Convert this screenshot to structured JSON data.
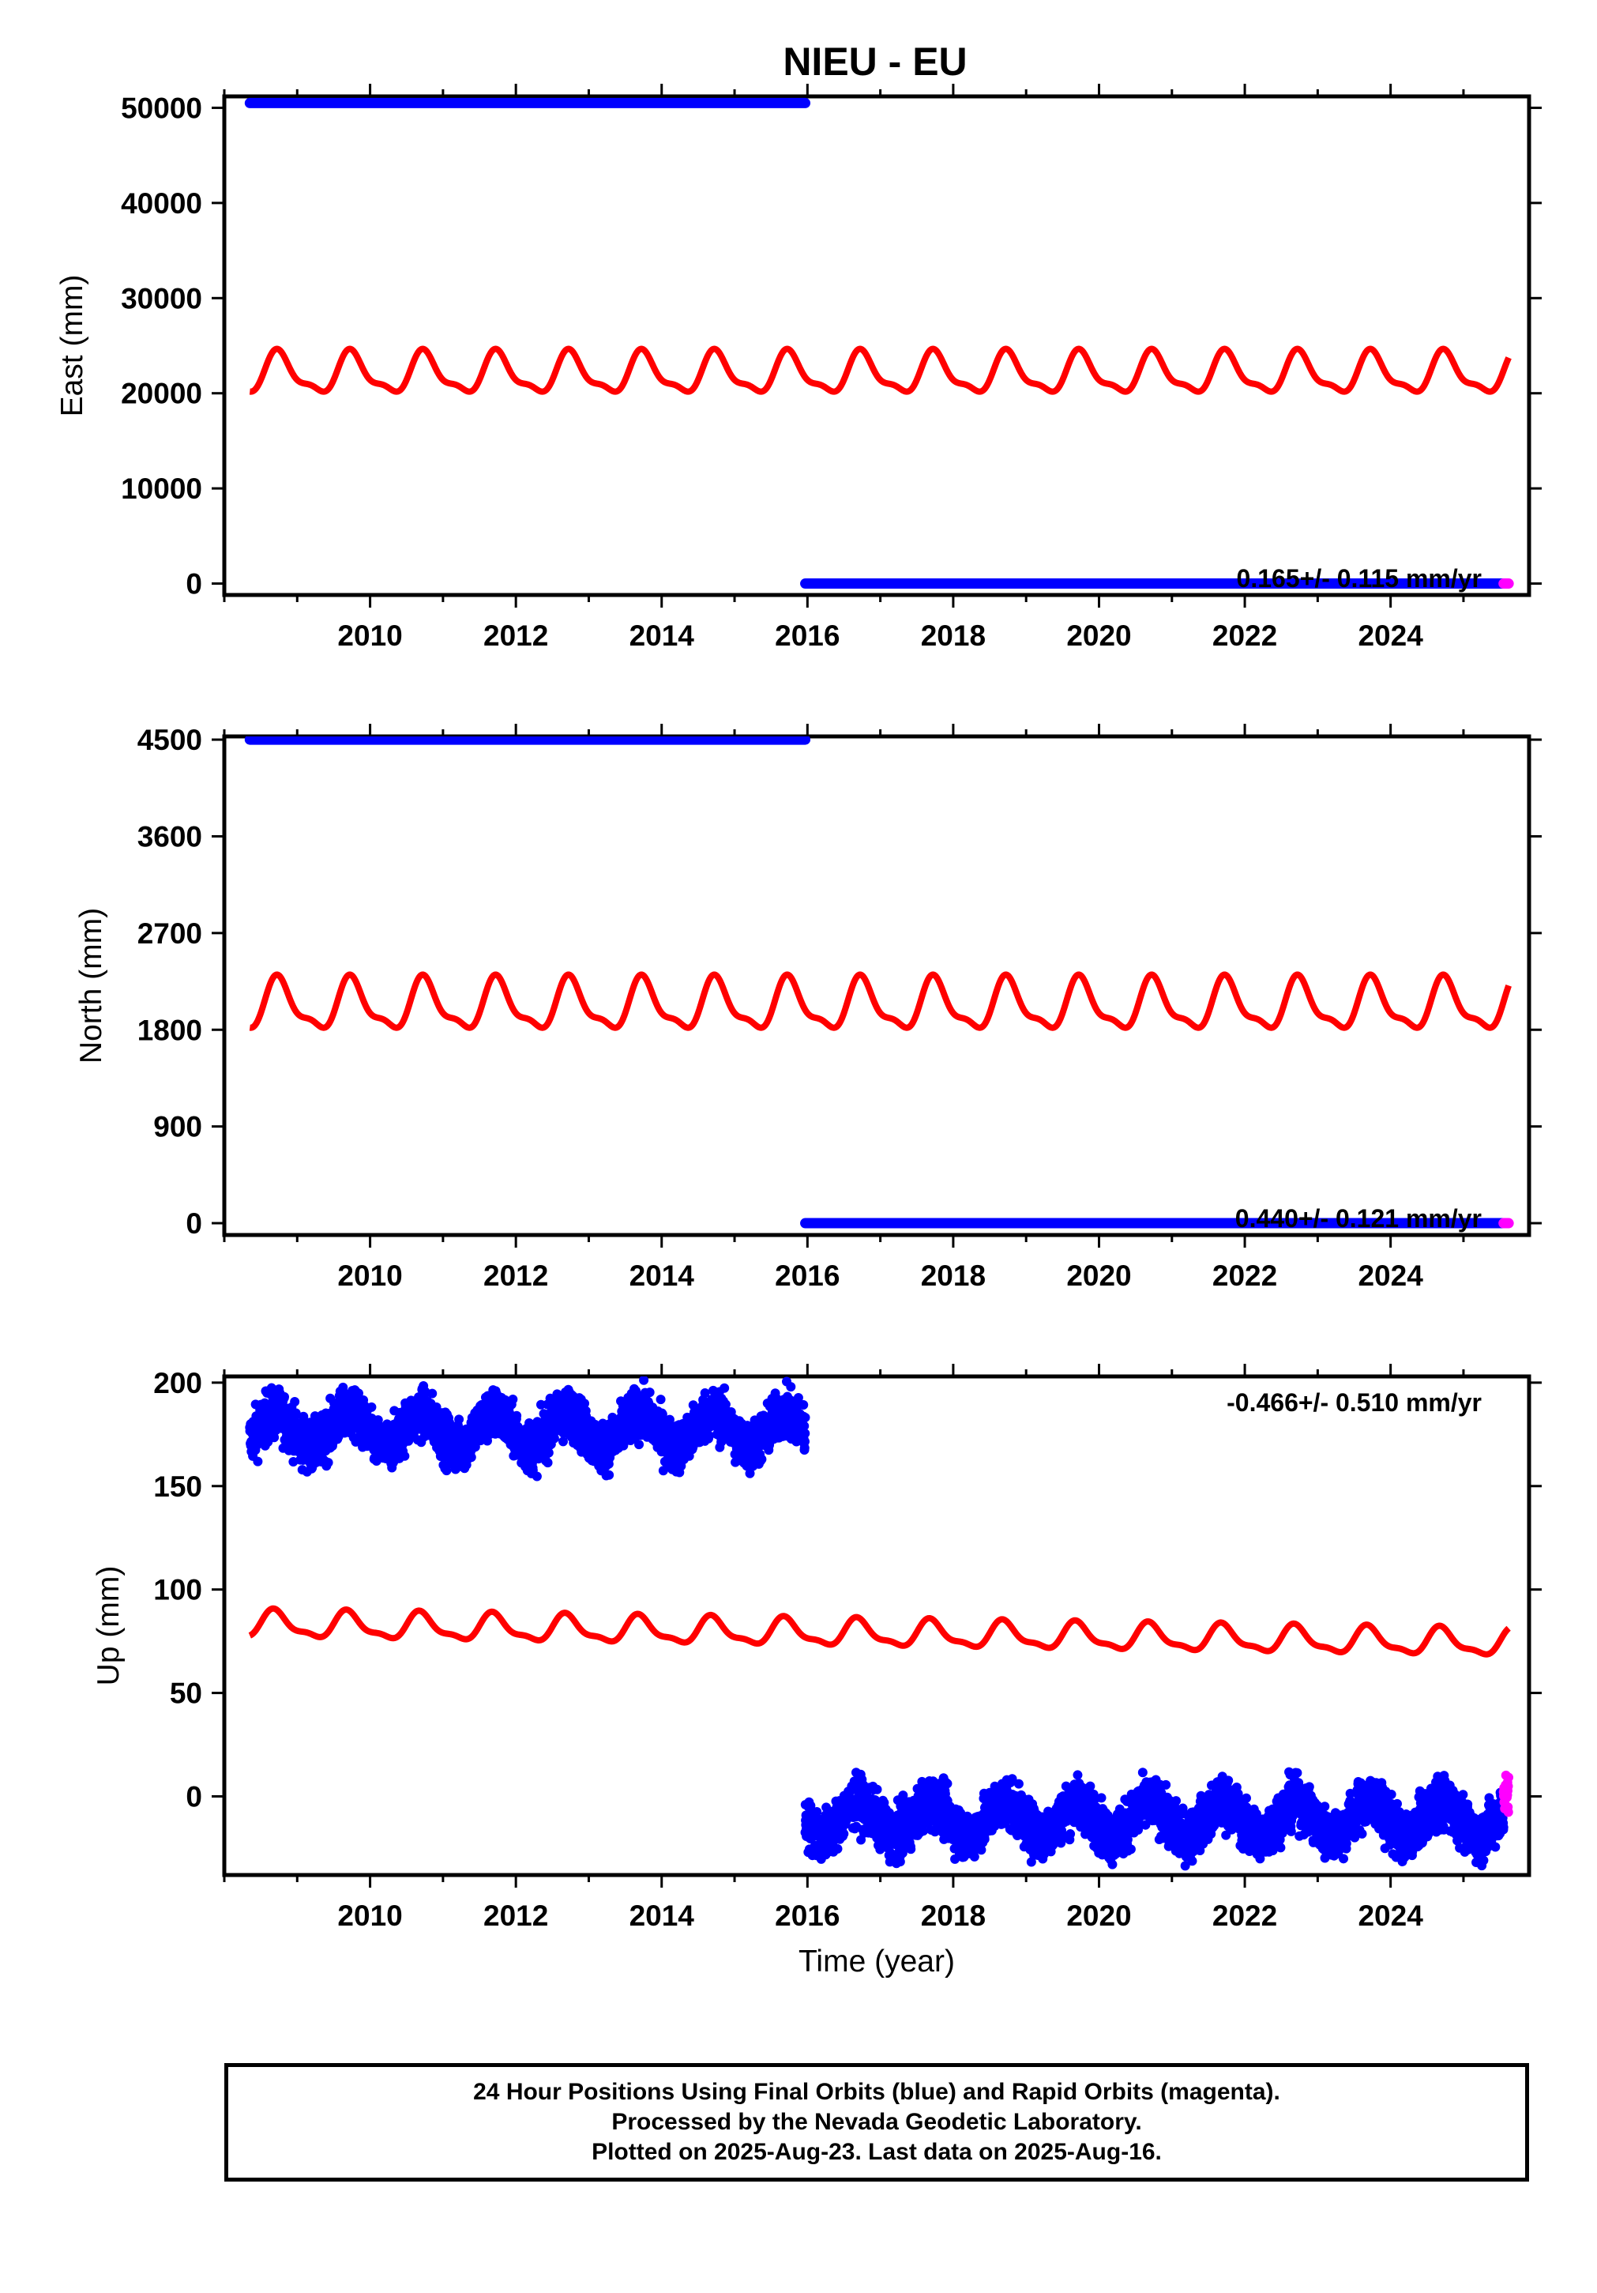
{
  "title": "NIEU - EU",
  "footer": {
    "line1": "24 Hour Positions Using Final Orbits (blue) and Rapid Orbits (magenta).",
    "line2": "Processed by the Nevada Geodetic Laboratory.",
    "line3": "Plotted on 2025-Aug-23. Last data on 2025-Aug-16."
  },
  "colors": {
    "final": "#0000ff",
    "rapid": "#ff00ff",
    "model": "#ff0000",
    "axis": "#000000"
  },
  "chart_data": [
    {
      "type": "scatter",
      "ylabel": "East (mm)",
      "xlim": [
        2008.0,
        2025.9
      ],
      "ylim": [
        -1200,
        51200
      ],
      "xticks": [
        2010,
        2012,
        2014,
        2016,
        2018,
        2020,
        2022,
        2024
      ],
      "yticks": [
        0,
        10000,
        20000,
        30000,
        40000,
        50000
      ],
      "rate_label": "0.165+/- 0.115 mm/yr",
      "rate_position": "bottom-right",
      "final_segments": [
        {
          "x_start": 2008.35,
          "x_end": 2015.97,
          "y": 50500
        },
        {
          "x_start": 2015.97,
          "x_end": 2025.55,
          "y": 0
        }
      ],
      "rapid_segment": {
        "x_start": 2025.55,
        "x_end": 2025.62,
        "y": 0
      },
      "model_curve": {
        "x_start": 2008.35,
        "x_end": 2025.62,
        "baseline_start": 20000,
        "baseline_end": 20000,
        "amplitude": 4000,
        "period_years": 1.0,
        "peak_phase": 0.75
      }
    },
    {
      "type": "scatter",
      "ylabel": "North (mm)",
      "xlim": [
        2008.0,
        2025.9
      ],
      "ylim": [
        -110,
        4530
      ],
      "xticks": [
        2010,
        2012,
        2014,
        2016,
        2018,
        2020,
        2022,
        2024
      ],
      "yticks": [
        0,
        900,
        1800,
        2700,
        3600,
        4500
      ],
      "rate_label": "0.440+/- 0.121 mm/yr",
      "rate_position": "bottom-right",
      "final_segments": [
        {
          "x_start": 2008.35,
          "x_end": 2015.97,
          "y": 4500
        },
        {
          "x_start": 2015.97,
          "x_end": 2025.55,
          "y": 0
        }
      ],
      "rapid_segment": {
        "x_start": 2025.55,
        "x_end": 2025.62,
        "y": 0
      },
      "model_curve": {
        "x_start": 2008.35,
        "x_end": 2025.62,
        "baseline_start": 1800,
        "baseline_end": 1800,
        "amplitude": 440,
        "period_years": 1.0,
        "peak_phase": 0.75
      }
    },
    {
      "type": "scatter",
      "ylabel": "Up (mm)",
      "xlabel": "Time (year)",
      "xlim": [
        2008.0,
        2025.9
      ],
      "ylim": [
        -38,
        203
      ],
      "xticks": [
        2010,
        2012,
        2014,
        2016,
        2018,
        2020,
        2022,
        2024
      ],
      "yticks": [
        0,
        50,
        100,
        150,
        200
      ],
      "rate_label": "-0.466+/- 0.510 mm/yr",
      "rate_position": "top-right",
      "final_segments": [
        {
          "x_start": 2008.35,
          "x_end": 2015.97,
          "mean": 177,
          "seasonal_amplitude": 8,
          "scatter": 6
        },
        {
          "x_start": 2015.97,
          "x_end": 2025.55,
          "mean": -11,
          "seasonal_amplitude": 8,
          "scatter": 6
        }
      ],
      "rapid_segment": {
        "x_start": 2025.55,
        "x_end": 2025.62,
        "mean": 1,
        "scatter": 5
      },
      "model_curve": {
        "x_start": 2008.35,
        "x_end": 2025.62,
        "baseline_start": 77,
        "baseline_end": 68,
        "amplitude": 12,
        "period_years": 1.0,
        "peak_phase": 0.7
      }
    }
  ]
}
